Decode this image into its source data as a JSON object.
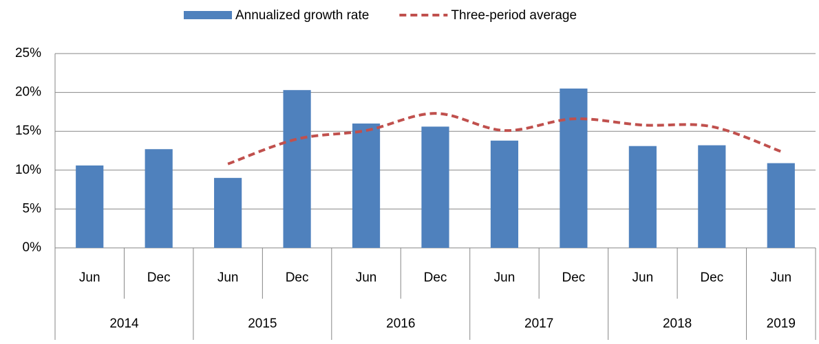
{
  "chart_data": {
    "type": "bar",
    "categories": [
      "Jun",
      "Dec",
      "Jun",
      "Dec",
      "Jun",
      "Dec",
      "Jun",
      "Dec",
      "Jun",
      "Dec",
      "Jun"
    ],
    "groups": [
      {
        "label": "2014",
        "size": 2
      },
      {
        "label": "2015",
        "size": 2
      },
      {
        "label": "2016",
        "size": 2
      },
      {
        "label": "2017",
        "size": 2
      },
      {
        "label": "2018",
        "size": 2
      },
      {
        "label": "2019",
        "size": 1
      }
    ],
    "series": [
      {
        "name": "Annualized growth rate",
        "type": "bar",
        "color": "#4f81bd",
        "values": [
          10.6,
          12.7,
          9.0,
          20.3,
          16.0,
          15.6,
          13.8,
          20.5,
          13.1,
          13.2,
          10.9
        ]
      },
      {
        "name": "Three-period average",
        "type": "line",
        "color": "#c0504d",
        "dashed": true,
        "smooth": true,
        "values": [
          null,
          null,
          10.8,
          14.0,
          15.1,
          17.3,
          15.1,
          16.6,
          15.8,
          15.6,
          12.4
        ]
      }
    ],
    "ylim": [
      0,
      25
    ],
    "yticks": [
      {
        "value": 0,
        "label": "0%"
      },
      {
        "value": 5,
        "label": "5%"
      },
      {
        "value": 10,
        "label": "10%"
      },
      {
        "value": 15,
        "label": "15%"
      },
      {
        "value": 20,
        "label": "20%"
      },
      {
        "value": 25,
        "label": "25%"
      }
    ],
    "grid": true,
    "legend": "top"
  }
}
